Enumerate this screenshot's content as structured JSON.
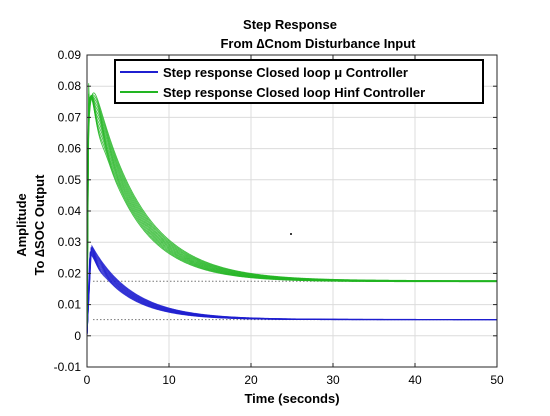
{
  "chart_data": {
    "type": "line",
    "title": "Step Response",
    "subtitle": "From ∆Cnom Disturbance Input",
    "xlabel": "Time (seconds)",
    "ylabel": "Amplitude",
    "ylabel_output": "To ∆SOC Output",
    "xlim": [
      0,
      50
    ],
    "ylim": [
      -0.01,
      0.09
    ],
    "xticks": [
      "0",
      "10",
      "20",
      "30",
      "40",
      "50"
    ],
    "yticks": [
      "-0.01",
      "0",
      "0.01",
      "0.02",
      "0.03",
      "0.04",
      "0.05",
      "0.06",
      "0.07",
      "0.08",
      "0.09"
    ],
    "grid": true,
    "legend_position": "top-right",
    "series": [
      {
        "name": "Step response Closed loop μ Controller",
        "color": "#1f1fd0",
        "initial": 0,
        "peak": 0.029,
        "peak_time": 0.4,
        "final": 0.0052,
        "time_constant": 4.8,
        "envelope": [
          {
            "t": 0,
            "y": 0
          },
          {
            "t": 0.4,
            "y": 0.029
          },
          {
            "t": 5,
            "y": 0.0131
          },
          {
            "t": 10,
            "y": 0.0083
          },
          {
            "t": 20,
            "y": 0.0055
          },
          {
            "t": 30,
            "y": 0.0052
          },
          {
            "t": 50,
            "y": 0.0052
          }
        ]
      },
      {
        "name": "Step response Closed loop Hinf Controller",
        "color": "#22b522",
        "initial": 0,
        "peak": 0.088,
        "peak_time": 0.2,
        "final": 0.0175,
        "time_constant": 5.5,
        "envelope": [
          {
            "t": 0,
            "y": 0
          },
          {
            "t": 0.2,
            "y": 0.088
          },
          {
            "t": 1,
            "y": 0.062
          },
          {
            "t": 5,
            "y": 0.044
          },
          {
            "t": 10,
            "y": 0.027
          },
          {
            "t": 20,
            "y": 0.019
          },
          {
            "t": 30,
            "y": 0.0176
          },
          {
            "t": 50,
            "y": 0.0175
          }
        ]
      }
    ]
  }
}
